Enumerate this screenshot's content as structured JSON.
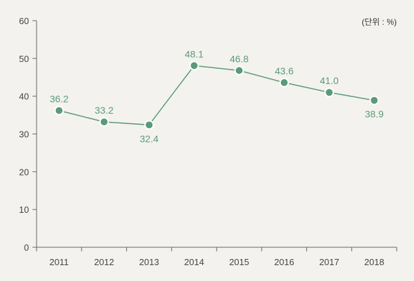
{
  "chart_data": {
    "type": "line",
    "unit_label": "(단위 : %)",
    "categories": [
      "2011",
      "2012",
      "2013",
      "2014",
      "2015",
      "2016",
      "2017",
      "2018"
    ],
    "values": [
      36.2,
      33.2,
      32.4,
      48.1,
      46.8,
      43.6,
      41.0,
      38.9
    ],
    "value_labels": [
      "36.2",
      "33.2",
      "32.4",
      "48.1",
      "46.8",
      "43.6",
      "41.0",
      "38.9"
    ],
    "ylim": [
      0,
      60
    ],
    "yticks": [
      "0",
      "10",
      "20",
      "30",
      "40",
      "50",
      "60"
    ],
    "grid": false,
    "line_color": "#5b9a78",
    "marker_color": "#5b9a78",
    "label_color": "#5b9a78"
  }
}
